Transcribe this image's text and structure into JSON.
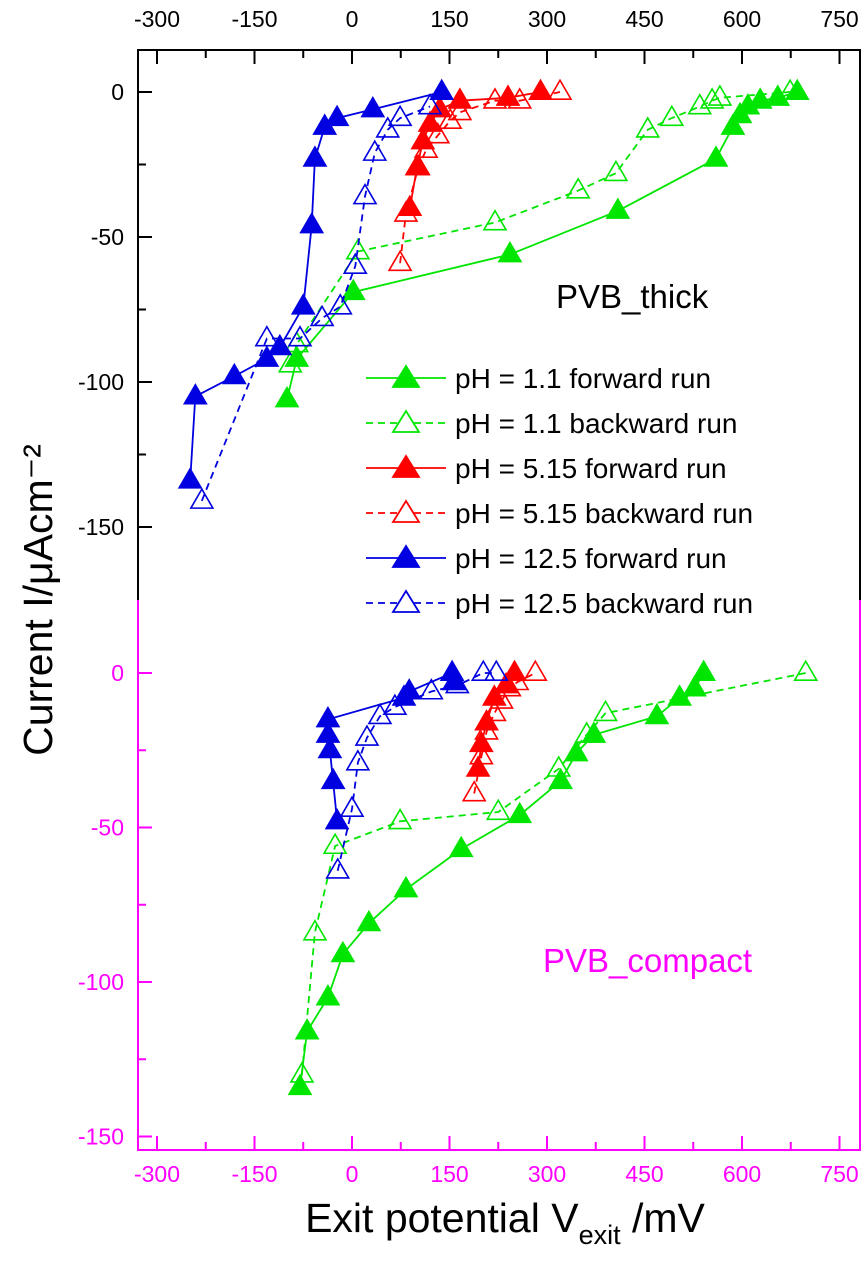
{
  "colors": {
    "green": "#00e600",
    "red": "#ff0000",
    "blue": "#0000e0",
    "axis_top": "#000000",
    "axis_bottom": "#ff00ff"
  },
  "chart_data": [
    {
      "type": "line",
      "panel_label": "PVB_thick",
      "ylabel": "Current I/μAcm⁻²",
      "xlim": [
        -300,
        750
      ],
      "ylim": [
        -175,
        15
      ],
      "x_ticks": [
        "-300",
        "-150",
        "0",
        "150",
        "300",
        "450",
        "600",
        "750"
      ],
      "y_ticks": [
        "0",
        "-50",
        "-100",
        "-150"
      ],
      "legend_placement": "right",
      "series": [
        {
          "name": "pH = 1.1 forward run",
          "color": "green",
          "filled": true,
          "dashed": false,
          "points": [
            [
              -100,
              -106
            ],
            [
              -85,
              -92
            ],
            [
              2,
              -69
            ],
            [
              243,
              -56
            ],
            [
              409,
              -41
            ],
            [
              560,
              -23
            ],
            [
              586,
              -12
            ],
            [
              597,
              -8
            ],
            [
              609,
              -5
            ],
            [
              628,
              -3
            ],
            [
              655,
              -2
            ],
            [
              685,
              0
            ]
          ]
        },
        {
          "name": "pH = 1.1 backward run",
          "color": "green",
          "filled": false,
          "dashed": false,
          "dashed_line": true,
          "points": [
            [
              -95,
              -94
            ],
            [
              -85,
              -87
            ],
            [
              9,
              -55
            ],
            [
              220,
              -45
            ],
            [
              348,
              -34
            ],
            [
              406,
              -28
            ],
            [
              455,
              -13
            ],
            [
              492,
              -9
            ],
            [
              535,
              -5
            ],
            [
              554,
              -3
            ],
            [
              566,
              -2
            ],
            [
              674,
              0
            ]
          ]
        },
        {
          "name": "pH = 5.15 forward run",
          "color": "red",
          "filled": true,
          "dashed_line": false,
          "points": [
            [
              89,
              -40
            ],
            [
              100,
              -26
            ],
            [
              109,
              -17
            ],
            [
              120,
              -11
            ],
            [
              135,
              -6
            ],
            [
              166,
              -3
            ],
            [
              240,
              -2
            ],
            [
              290,
              0
            ]
          ]
        },
        {
          "name": "pH = 5.15 backward run",
          "color": "red",
          "filled": false,
          "dashed_line": true,
          "points": [
            [
              74,
              -59
            ],
            [
              83,
              -42
            ],
            [
              102,
              -26
            ],
            [
              114,
              -20
            ],
            [
              132,
              -15
            ],
            [
              151,
              -10
            ],
            [
              166,
              -7
            ],
            [
              220,
              -3
            ],
            [
              258,
              -3
            ],
            [
              320,
              0
            ]
          ]
        },
        {
          "name": "pH = 12.5 forward run",
          "color": "blue",
          "filled": true,
          "dashed_line": false,
          "points": [
            [
              -249,
              -134
            ],
            [
              -241,
              -105
            ],
            [
              -181,
              -98
            ],
            [
              -131,
              -92
            ],
            [
              -111,
              -88
            ],
            [
              -75,
              -74
            ],
            [
              -62,
              -46
            ],
            [
              -57,
              -23
            ],
            [
              -42,
              -12
            ],
            [
              -23,
              -9
            ],
            [
              32,
              -6
            ],
            [
              138,
              0
            ]
          ]
        },
        {
          "name": "pH = 12.5 backward run",
          "color": "blue",
          "filled": false,
          "dashed_line": true,
          "points": [
            [
              -231,
              -141
            ],
            [
              -131,
              -85
            ],
            [
              -80,
              -85
            ],
            [
              -46,
              -78
            ],
            [
              -18,
              -74
            ],
            [
              5,
              -60
            ],
            [
              20,
              -36
            ],
            [
              35,
              -21
            ],
            [
              55,
              -13
            ],
            [
              74,
              -9
            ],
            [
              120,
              -5
            ]
          ]
        }
      ]
    },
    {
      "type": "line",
      "panel_label": "PVB_compact",
      "xlabel": "Exit potential V",
      "xlabel_sub": "exit",
      "xlabel_unit": " /mV",
      "xlim": [
        -300,
        750
      ],
      "ylim": [
        -155,
        23
      ],
      "x_ticks": [
        "-300",
        "-150",
        "0",
        "150",
        "300",
        "450",
        "600",
        "750"
      ],
      "y_ticks": [
        "0",
        "-50",
        "-100",
        "-150"
      ],
      "series": [
        {
          "name": "pH = 1.1 forward run",
          "color": "green",
          "filled": true,
          "dashed_line": false,
          "points": [
            [
              -80,
              -134
            ],
            [
              -69,
              -116
            ],
            [
              -37,
              -105
            ],
            [
              -14,
              -91
            ],
            [
              26,
              -81
            ],
            [
              83,
              -70
            ],
            [
              168,
              -57
            ],
            [
              258,
              -46
            ],
            [
              321,
              -35
            ],
            [
              345,
              -26
            ],
            [
              372,
              -20
            ],
            [
              469,
              -14
            ],
            [
              504,
              -8
            ],
            [
              527,
              -5
            ],
            [
              541,
              0
            ]
          ]
        },
        {
          "name": "pH = 1.1 backward run",
          "color": "green",
          "filled": false,
          "dashed_line": true,
          "points": [
            [
              -77,
              -130
            ],
            [
              -57,
              -84
            ],
            [
              -26,
              -56
            ],
            [
              74,
              -48
            ],
            [
              225,
              -45
            ],
            [
              318,
              -31
            ],
            [
              361,
              -20
            ],
            [
              390,
              -13
            ],
            [
              698,
              0
            ]
          ]
        },
        {
          "name": "pH = 5.15 forward run",
          "color": "red",
          "filled": true,
          "dashed_line": false,
          "points": [
            [
              194,
              -31
            ],
            [
              199,
              -23
            ],
            [
              207,
              -16
            ],
            [
              219,
              -8
            ],
            [
              237,
              -4
            ],
            [
              250,
              0
            ]
          ]
        },
        {
          "name": "pH = 5.15 backward run",
          "color": "red",
          "filled": false,
          "dashed_line": true,
          "points": [
            [
              188,
              -39
            ],
            [
              199,
              -27
            ],
            [
              207,
              -19
            ],
            [
              219,
              -13
            ],
            [
              230,
              -9
            ],
            [
              242,
              -5
            ],
            [
              254,
              -3
            ],
            [
              282,
              0
            ]
          ]
        },
        {
          "name": "pH = 12.5 forward run",
          "color": "blue",
          "filled": true,
          "dashed_line": false,
          "points": [
            [
              -23,
              -48
            ],
            [
              -29,
              -35
            ],
            [
              -34,
              -25
            ],
            [
              -37,
              -20
            ],
            [
              -37,
              -15
            ],
            [
              80,
              -8
            ],
            [
              88,
              -6
            ],
            [
              154,
              0
            ],
            [
              157,
              -3
            ]
          ]
        },
        {
          "name": "pH = 12.5 backward run",
          "color": "blue",
          "filled": false,
          "dashed_line": true,
          "points": [
            [
              -22,
              -64
            ],
            [
              0,
              -44
            ],
            [
              9,
              -29
            ],
            [
              23,
              -21
            ],
            [
              43,
              -14
            ],
            [
              66,
              -11
            ],
            [
              122,
              -6
            ],
            [
              162,
              -4
            ],
            [
              202,
              0
            ],
            [
              222,
              0
            ]
          ]
        }
      ]
    }
  ]
}
